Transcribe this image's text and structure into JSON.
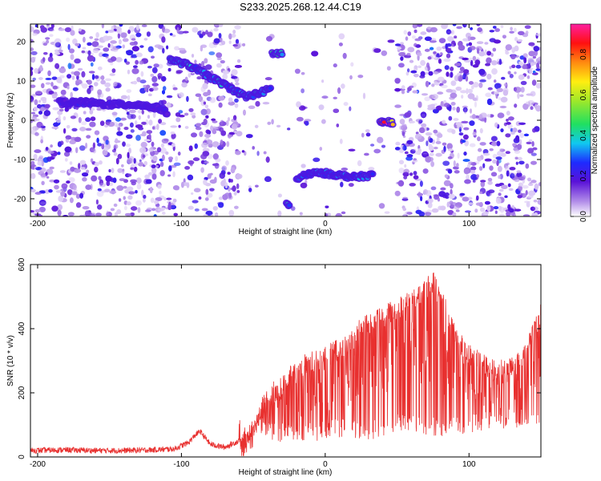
{
  "title": "S233.2025.268.12.44.C19",
  "chart_data": [
    {
      "type": "heatmap",
      "title": "S233.2025.268.12.44.C19",
      "xlabel": "Height of straight line (km)",
      "ylabel": "Frequency (Hz)",
      "xlim": [
        -205,
        150
      ],
      "ylim": [
        -24.5,
        24.5
      ],
      "xticks": [
        -200,
        -100,
        0,
        100
      ],
      "yticks": [
        -20,
        -10,
        0,
        10,
        20
      ],
      "xtick_labels": [
        "-200",
        "-100",
        "0",
        "100"
      ],
      "ytick_labels": [
        "-20",
        "-10",
        "0",
        "10",
        "20"
      ],
      "colorbar": {
        "label": "Normalized spectral amplitude",
        "range": [
          0.0,
          0.95
        ],
        "ticks": [
          0.0,
          0.2,
          0.4,
          0.6,
          0.8
        ],
        "tick_labels": [
          "0.0",
          "0.2",
          "0.4",
          "0.6",
          "0.8"
        ]
      },
      "signal_tracks": [
        {
          "name": "track-1",
          "x": [
            -185,
            -165,
            -150,
            -130,
            -115,
            -110
          ],
          "y": [
            4.5,
            4.5,
            4,
            4,
            3,
            2
          ],
          "amplitude": 0.2
        },
        {
          "name": "track-2",
          "x": [
            -108,
            -95,
            -80,
            -65,
            -55,
            -45,
            -38
          ],
          "y": [
            15.5,
            14,
            11,
            8,
            6,
            7,
            8
          ],
          "amplitude": 0.35
        },
        {
          "name": "track-3",
          "x": [
            -37,
            -30
          ],
          "y": [
            17,
            17
          ],
          "amplitude": 0.4
        },
        {
          "name": "track-4",
          "x": [
            -27,
            -25
          ],
          "y": [
            -21,
            -22
          ],
          "amplitude": 0.35
        },
        {
          "name": "track-5",
          "x": [
            -20,
            -10,
            0,
            10,
            20,
            33
          ],
          "y": [
            -15,
            -13.5,
            -13.5,
            -14,
            -14.5,
            -14
          ],
          "amplitude": 0.3
        },
        {
          "name": "track-6",
          "x": [
            38,
            42,
            47
          ],
          "y": [
            -0.5,
            -0.5,
            -0.5
          ],
          "amplitude": 0.85
        }
      ],
      "sparse_region_km": [
        -60,
        50
      ]
    },
    {
      "type": "line",
      "xlabel": "Height of straight line (km)",
      "ylabel": "SNR (10 * v/v)",
      "xlim": [
        -205,
        150
      ],
      "ylim": [
        0,
        600
      ],
      "xticks": [
        -200,
        -100,
        0,
        100
      ],
      "yticks": [
        0,
        200,
        400,
        600
      ],
      "xtick_labels": [
        "-200",
        "-100",
        "0",
        "100"
      ],
      "ytick_labels": [
        "0",
        "200",
        "400",
        "600"
      ],
      "color": "#e8302f",
      "series": [
        {
          "name": "SNR",
          "x": [
            -205,
            -180,
            -160,
            -140,
            -120,
            -105,
            -100,
            -95,
            -90,
            -87,
            -80,
            -70,
            -60,
            -50,
            -45,
            -40,
            -35,
            -30,
            -25,
            -20,
            -15,
            -10,
            -5,
            0,
            5,
            10,
            15,
            20,
            30,
            40,
            50,
            60,
            70,
            75,
            80,
            85,
            90,
            95,
            100,
            105,
            110,
            115,
            120,
            125,
            130,
            135,
            140,
            145,
            150
          ],
          "y": [
            20,
            22,
            20,
            20,
            22,
            25,
            35,
            45,
            70,
            80,
            40,
            30,
            50,
            100,
            180,
            220,
            240,
            260,
            290,
            300,
            320,
            330,
            340,
            350,
            360,
            370,
            380,
            420,
            450,
            470,
            500,
            520,
            560,
            580,
            530,
            480,
            420,
            380,
            360,
            340,
            330,
            320,
            300,
            310,
            320,
            330,
            380,
            420,
            480
          ]
        }
      ],
      "series_lows": [
        -205,
        -45,
        -25,
        -5,
        10,
        30,
        50,
        80,
        110,
        150
      ],
      "low_values": [
        10,
        60,
        40,
        50,
        60,
        50,
        80,
        60,
        80,
        100
      ]
    }
  ]
}
